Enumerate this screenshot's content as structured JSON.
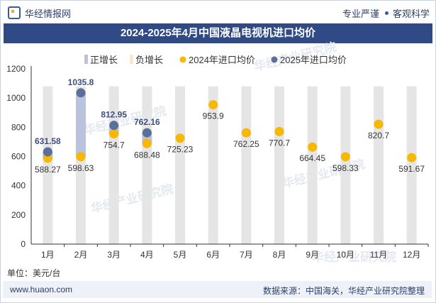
{
  "header": {
    "brand": "华经情报网",
    "slogan_left": "专业严谨",
    "slogan_right": "客观科学",
    "brand_icon": "hexagon-logo-icon"
  },
  "title": "2024-2025年4月中国液晶电视机进口均价",
  "unit_label": "单位：美元/台",
  "footer": {
    "website": "www.huaon.com",
    "source": "数据来源：中国海关，华经产业研究院整理"
  },
  "watermark": "华经产业研究院",
  "watermark_url": "www.huaon.com",
  "colors": {
    "increase_bar": "#b9c3dd",
    "decrease_bar": "#fbe7c1",
    "background_column": "#e5e5e5",
    "dot_2024": "#f6b800",
    "dot_2025": "#5c6f9a",
    "label_2025": "#3d4f7c",
    "title_bg": "#2f4a85"
  },
  "chart_data": {
    "type": "bar",
    "categories": [
      "1月",
      "2月",
      "3月",
      "4月",
      "5月",
      "6月",
      "7月",
      "8月",
      "9月",
      "10月",
      "11月",
      "12月"
    ],
    "series": [
      {
        "name": "2024年进口均价",
        "kind": "dot",
        "values": [
          588.27,
          598.63,
          754.7,
          688.48,
          725.23,
          953.9,
          762.25,
          770.7,
          664.45,
          598.33,
          820.7,
          591.67
        ]
      },
      {
        "name": "2025年进口均价",
        "kind": "dot",
        "values": [
          631.58,
          1035.8,
          812.95,
          762.16,
          null,
          null,
          null,
          null,
          null,
          null,
          null,
          null
        ]
      },
      {
        "name": "正增长",
        "kind": "floating-bar"
      },
      {
        "name": "负增长",
        "kind": "floating-bar"
      }
    ],
    "labels_2024": [
      "588.27",
      "598.63",
      "754.7",
      "688.48",
      "725.23",
      "953.9",
      "762.25",
      "770.7",
      "664.45",
      "598.33",
      "820.7",
      "591.67"
    ],
    "labels_2025": [
      "631.58",
      "1035.8",
      "812.95",
      "762.16"
    ],
    "legend": [
      "正增长",
      "负增长",
      "2024年进口均价",
      "2025年进口均价"
    ],
    "legend_position": "top",
    "yticks": [
      "0",
      "200",
      "400",
      "600",
      "800",
      "1000",
      "1200"
    ],
    "ylim": [
      0,
      1200
    ],
    "xlabel": "",
    "ylabel": "",
    "grid": false
  }
}
